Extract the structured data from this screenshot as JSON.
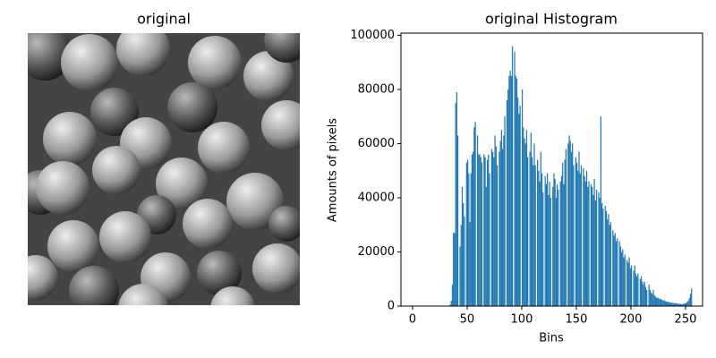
{
  "chart_data": [
    {
      "type": "image",
      "title": "original"
    },
    {
      "type": "histogram",
      "title": "original Histogram",
      "xlabel": "Bins",
      "ylabel": "Amounts of pixels",
      "color": "#1f77b4",
      "bins": [
        0,
        1,
        2,
        3,
        4,
        5,
        6,
        7,
        8,
        9,
        10,
        11,
        12,
        13,
        14,
        15,
        16,
        17,
        18,
        19,
        20,
        21,
        22,
        23,
        24,
        25,
        26,
        27,
        28,
        29,
        30,
        31,
        32,
        33,
        34,
        35,
        36,
        37,
        38,
        39,
        40,
        41,
        42,
        43,
        44,
        45,
        46,
        47,
        48,
        49,
        50,
        51,
        52,
        53,
        54,
        55,
        56,
        57,
        58,
        59,
        60,
        61,
        62,
        63,
        64,
        65,
        66,
        67,
        68,
        69,
        70,
        71,
        72,
        73,
        74,
        75,
        76,
        77,
        78,
        79,
        80,
        81,
        82,
        83,
        84,
        85,
        86,
        87,
        88,
        89,
        90,
        91,
        92,
        93,
        94,
        95,
        96,
        97,
        98,
        99,
        100,
        101,
        102,
        103,
        104,
        105,
        106,
        107,
        108,
        109,
        110,
        111,
        112,
        113,
        114,
        115,
        116,
        117,
        118,
        119,
        120,
        121,
        122,
        123,
        124,
        125,
        126,
        127,
        128,
        129,
        130,
        131,
        132,
        133,
        134,
        135,
        136,
        137,
        138,
        139,
        140,
        141,
        142,
        143,
        144,
        145,
        146,
        147,
        148,
        149,
        150,
        151,
        152,
        153,
        154,
        155,
        156,
        157,
        158,
        159,
        160,
        161,
        162,
        163,
        164,
        165,
        166,
        167,
        168,
        169,
        170,
        171,
        172,
        173,
        174,
        175,
        176,
        177,
        178,
        179,
        180,
        181,
        182,
        183,
        184,
        185,
        186,
        187,
        188,
        189,
        190,
        191,
        192,
        193,
        194,
        195,
        196,
        197,
        198,
        199,
        200,
        201,
        202,
        203,
        204,
        205,
        206,
        207,
        208,
        209,
        210,
        211,
        212,
        213,
        214,
        215,
        216,
        217,
        218,
        219,
        220,
        221,
        222,
        223,
        224,
        225,
        226,
        227,
        228,
        229,
        230,
        231,
        232,
        233,
        234,
        235,
        236,
        237,
        238,
        239,
        240,
        241,
        242,
        243,
        244,
        245,
        246,
        247,
        248,
        249,
        250,
        251,
        252,
        253,
        254,
        255,
        256
      ],
      "values": [
        0,
        0,
        0,
        0,
        0,
        0,
        0,
        0,
        0,
        0,
        0,
        0,
        0,
        0,
        0,
        0,
        0,
        0,
        0,
        0,
        0,
        0,
        0,
        0,
        0,
        0,
        0,
        0,
        0,
        0,
        0,
        0,
        0,
        0,
        500,
        2000,
        8000,
        27000,
        27000,
        75000,
        79000,
        63000,
        0,
        22000,
        30000,
        44000,
        38000,
        33000,
        0,
        53000,
        54000,
        49000,
        31000,
        49000,
        56000,
        57000,
        66000,
        68000,
        0,
        63000,
        56000,
        56000,
        55000,
        53000,
        0,
        56000,
        55000,
        44000,
        54000,
        56000,
        49000,
        0,
        58000,
        57000,
        55000,
        63000,
        59000,
        52000,
        0,
        57000,
        61000,
        65000,
        58000,
        63000,
        70000,
        0,
        76000,
        80000,
        85000,
        87000,
        85000,
        96000,
        0,
        94000,
        85000,
        84000,
        77000,
        71000,
        74000,
        0,
        80000,
        66000,
        62000,
        60000,
        65000,
        55000,
        0,
        57000,
        64000,
        55000,
        52000,
        60000,
        52000,
        0,
        54000,
        50000,
        46000,
        57000,
        49000,
        42000,
        0,
        48000,
        45000,
        49000,
        41000,
        46000,
        40000,
        0,
        44000,
        49000,
        47000,
        40000,
        45000,
        43000,
        0,
        46000,
        48000,
        53000,
        45000,
        54000,
        58000,
        0,
        60000,
        63000,
        61000,
        57000,
        60000,
        52000,
        0,
        55000,
        53000,
        50000,
        57000,
        49000,
        52000,
        0,
        51000,
        48000,
        46000,
        50000,
        44000,
        46000,
        0,
        45000,
        44000,
        41000,
        47000,
        39000,
        43000,
        0,
        42000,
        40000,
        70000,
        38000,
        36000,
        0,
        37000,
        35000,
        32000,
        34000,
        30000,
        31000,
        0,
        28000,
        26000,
        27000,
        24000,
        25000,
        0,
        24000,
        22000,
        20000,
        21000,
        18000,
        19000,
        0,
        17000,
        16000,
        18000,
        14000,
        15000,
        0,
        13000,
        15000,
        12000,
        11000,
        12000,
        0,
        10000,
        11000,
        9000,
        8000,
        9000,
        7000,
        6000,
        0,
        8000,
        6000,
        5000,
        4500,
        6000,
        4000,
        3500,
        3000,
        3200,
        2800,
        2500,
        2700,
        2300,
        2000,
        2200,
        1800,
        1600,
        1700,
        1500,
        1400,
        1300,
        1200,
        1200,
        1100,
        1000,
        1000,
        900,
        900,
        800,
        800,
        700,
        800,
        900,
        1000,
        1200,
        1500,
        2000,
        3000,
        4500,
        6500
      ],
      "xlim": [
        -10.6,
        265.6
      ],
      "xticks": [
        0,
        50,
        100,
        150,
        200,
        250
      ],
      "ylim": [
        0,
        100800
      ],
      "yticks": [
        0,
        20000,
        40000,
        60000,
        80000,
        100000
      ]
    }
  ]
}
